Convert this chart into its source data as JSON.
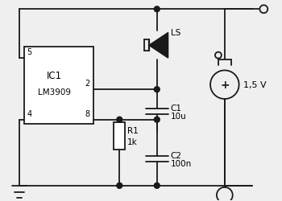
{
  "bg_color": "#efefef",
  "line_color": "#1a1a1a",
  "line_width": 1.3,
  "ic_label1": "IC1",
  "ic_label2": "LM3909",
  "pin5_label": "5",
  "pin2_label": "2",
  "pin4_label": "4",
  "pin8_label": "8",
  "r1_label": "R1",
  "r1_val": "1k",
  "c1_label": "C1",
  "c1_val": "10u",
  "c2_label": "C2",
  "c2_val": "100n",
  "ls_label": "LS",
  "v_label": "1,5 V"
}
